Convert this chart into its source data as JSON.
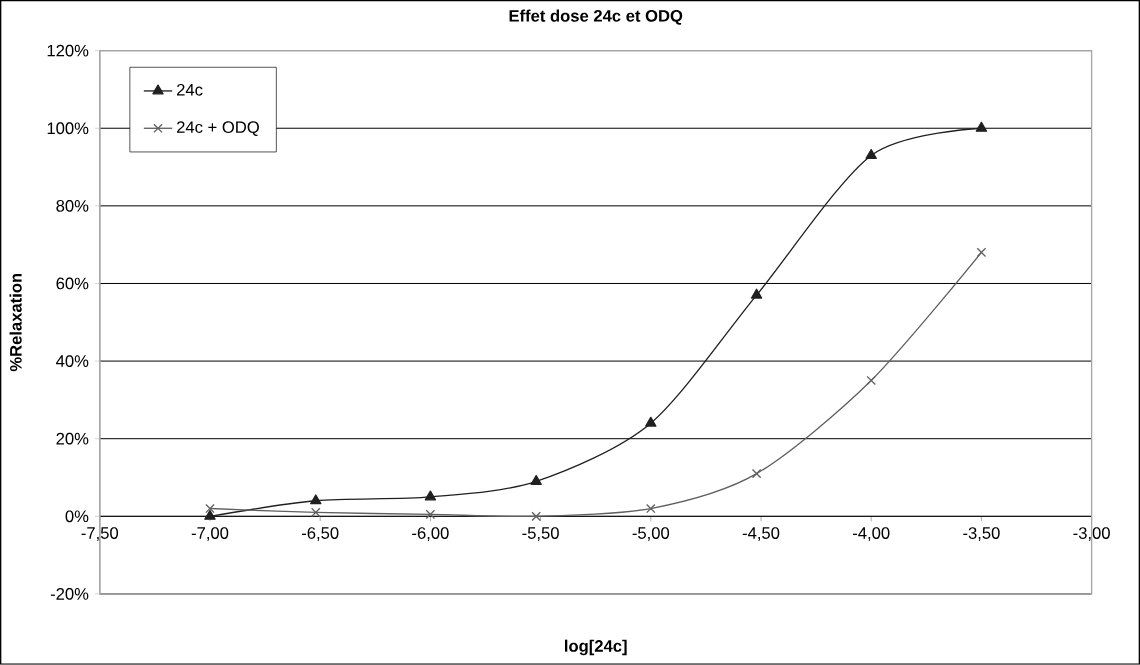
{
  "chart_data": {
    "type": "line",
    "title": "Effet dose 24c et ODQ",
    "xlabel": "log[24c]",
    "ylabel": "%Relaxation",
    "x": [
      -7.0,
      -6.52,
      -6.0,
      -5.52,
      -5.0,
      -4.52,
      -4.0,
      -3.5
    ],
    "series": [
      {
        "name": "24c",
        "color": "#202020",
        "marker": "triangle",
        "values": [
          0,
          4,
          5,
          9,
          24,
          57,
          93,
          100
        ]
      },
      {
        "name": "24c + ODQ",
        "color": "#606060",
        "marker": "cross",
        "values": [
          2,
          1,
          0.5,
          0,
          2,
          11,
          35,
          68
        ]
      }
    ],
    "xlim": [
      -7.5,
      -3.0
    ],
    "xticks": [
      {
        "value": -7.5,
        "label": "-7,50"
      },
      {
        "value": -7.0,
        "label": "-7,00"
      },
      {
        "value": -6.5,
        "label": "-6,50"
      },
      {
        "value": -6.0,
        "label": "-6,00"
      },
      {
        "value": -5.5,
        "label": "-5,50"
      },
      {
        "value": -5.0,
        "label": "-5,00"
      },
      {
        "value": -4.5,
        "label": "-4,50"
      },
      {
        "value": -4.0,
        "label": "-4,00"
      },
      {
        "value": -3.5,
        "label": "-3,50"
      },
      {
        "value": -3.0,
        "label": "-3,00"
      }
    ],
    "ylim": [
      -20,
      120
    ],
    "yticks": [
      {
        "value": -20,
        "label": "-20%"
      },
      {
        "value": 0,
        "label": "0%"
      },
      {
        "value": 20,
        "label": "20%"
      },
      {
        "value": 40,
        "label": "40%"
      },
      {
        "value": 60,
        "label": "60%"
      },
      {
        "value": 80,
        "label": "80%"
      },
      {
        "value": 100,
        "label": "100%"
      },
      {
        "value": 120,
        "label": "120%"
      }
    ],
    "grid": "y",
    "legend": "top left",
    "line_style": "solid"
  }
}
